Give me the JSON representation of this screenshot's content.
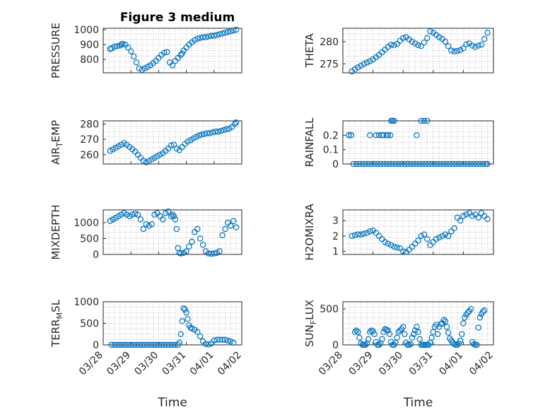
{
  "figure": {
    "title": "Figure 3 medium"
  },
  "chart_data": [
    {
      "type": "scatter",
      "ylabel": "PRESSURE",
      "xlabel": "",
      "ylim": [
        710,
        1010
      ],
      "yticks": [
        800,
        900,
        1000
      ],
      "xlim": [
        "2013-03-28",
        "2013-04-02"
      ],
      "xticks": [
        "03/28",
        "03/29",
        "03/30",
        "03/31",
        "04/01",
        "04/02"
      ],
      "title": "Figure 3 medium",
      "grid": true,
      "marker_color": "#0072bd",
      "x": [
        0.25,
        0.3,
        0.4,
        0.5,
        0.6,
        0.65,
        0.7,
        0.8,
        0.9,
        1.0,
        1.1,
        1.2,
        1.3,
        1.4,
        1.5,
        1.6,
        1.7,
        1.8,
        1.9,
        2.0,
        2.1,
        2.2,
        2.3,
        2.4,
        2.5,
        2.6,
        2.7,
        2.8,
        2.85,
        2.9,
        3.0,
        3.1,
        3.2,
        3.3,
        3.4,
        3.5,
        3.6,
        3.7,
        3.8,
        3.9,
        4.0,
        4.1,
        4.2,
        4.3,
        4.4,
        4.5,
        4.6,
        4.7,
        4.8
      ],
      "y": [
        870,
        875,
        885,
        890,
        893,
        900,
        905,
        900,
        880,
        855,
        820,
        780,
        740,
        730,
        740,
        750,
        760,
        775,
        790,
        810,
        830,
        845,
        850,
        780,
        760,
        790,
        810,
        830,
        840,
        860,
        880,
        900,
        915,
        930,
        940,
        945,
        950,
        950,
        955,
        960,
        960,
        965,
        970,
        975,
        980,
        985,
        990,
        995,
        1000
      ]
    },
    {
      "type": "scatter",
      "ylabel": "THETA",
      "xlabel": "",
      "ylim": [
        273,
        283
      ],
      "yticks": [
        275,
        280
      ],
      "xlim": [
        "2013-03-28",
        "2013-04-02"
      ],
      "xticks": [
        "03/28",
        "03/29",
        "03/30",
        "03/31",
        "04/01",
        "04/02"
      ],
      "grid": true,
      "x": [
        0.3,
        0.4,
        0.5,
        0.6,
        0.7,
        0.8,
        0.9,
        1.0,
        1.1,
        1.2,
        1.3,
        1.4,
        1.5,
        1.6,
        1.7,
        1.8,
        1.9,
        2.0,
        2.1,
        2.2,
        2.3,
        2.4,
        2.5,
        2.6,
        2.7,
        2.8,
        2.9,
        3.0,
        3.1,
        3.2,
        3.3,
        3.4,
        3.5,
        3.6,
        3.7,
        3.8,
        3.9,
        4.0,
        4.1,
        4.2,
        4.3,
        4.4,
        4.5,
        4.6,
        4.7,
        4.8
      ],
      "y": [
        273.3,
        273.8,
        274.2,
        274.6,
        275.0,
        275.3,
        275.6,
        276.0,
        276.5,
        277.0,
        277.6,
        278.2,
        278.8,
        279.3,
        279.2,
        279.5,
        280.2,
        280.8,
        281.0,
        280.5,
        280.0,
        279.6,
        279.2,
        279.0,
        279.8,
        280.8,
        282.3,
        282.0,
        281.5,
        281.0,
        280.6,
        280.0,
        279.0,
        278.0,
        277.8,
        277.9,
        278.1,
        278.5,
        279.4,
        279.6,
        279.1,
        278.8,
        279.1,
        279.3,
        280.6,
        282.0
      ]
    },
    {
      "type": "scatter",
      "ylabel": "AIR_TEMP",
      "xlabel": "",
      "ylim": [
        254,
        282
      ],
      "yticks": [
        260,
        270,
        280
      ],
      "xlim": [
        "2013-03-28",
        "2013-04-02"
      ],
      "xticks": [
        "03/28",
        "03/29",
        "03/30",
        "03/31",
        "04/01",
        "04/02"
      ],
      "grid": true,
      "x": [
        0.25,
        0.35,
        0.45,
        0.55,
        0.65,
        0.75,
        0.85,
        0.95,
        1.05,
        1.15,
        1.25,
        1.35,
        1.45,
        1.55,
        1.65,
        1.75,
        1.85,
        1.95,
        2.05,
        2.15,
        2.25,
        2.35,
        2.45,
        2.55,
        2.65,
        2.75,
        2.85,
        2.95,
        3.05,
        3.15,
        3.25,
        3.35,
        3.45,
        3.55,
        3.65,
        3.75,
        3.85,
        3.95,
        4.05,
        4.15,
        4.25,
        4.35,
        4.45,
        4.55,
        4.65,
        4.75,
        4.8
      ],
      "y": [
        262.5,
        263.5,
        264.5,
        265.5,
        266.5,
        267.5,
        266.5,
        265.0,
        263.5,
        262.0,
        260.0,
        258.0,
        256.0,
        255.0,
        256.0,
        257.0,
        258.0,
        259.0,
        260.0,
        261.0,
        262.5,
        264.0,
        266.0,
        266.5,
        264.0,
        263.0,
        265.0,
        267.0,
        268.5,
        269.5,
        270.5,
        271.5,
        272.5,
        273.0,
        273.5,
        274.0,
        274.0,
        274.5,
        275.0,
        275.0,
        275.5,
        276.0,
        276.5,
        277.0,
        278.0,
        280.0,
        281.0
      ]
    },
    {
      "type": "scatter",
      "ylabel": "RAINFALL",
      "xlabel": "",
      "ylim": [
        0,
        0.3
      ],
      "yticks": [
        0,
        0.1,
        0.2
      ],
      "xlim": [
        "2013-03-28",
        "2013-04-02"
      ],
      "xticks": [
        "03/28",
        "03/29",
        "03/30",
        "03/31",
        "04/01",
        "04/02"
      ],
      "grid": true,
      "x": [
        0.2,
        0.28,
        0.35,
        0.45,
        0.55,
        0.65,
        0.75,
        0.85,
        0.95,
        1.05,
        1.15,
        1.25,
        1.35,
        1.45,
        1.55,
        1.65,
        1.75,
        1.85,
        1.95,
        2.05,
        2.15,
        2.25,
        2.35,
        2.45,
        2.55,
        2.65,
        2.75,
        2.85,
        2.95,
        3.05,
        3.15,
        3.25,
        3.35,
        3.45,
        3.55,
        3.65,
        3.75,
        3.85,
        3.95,
        4.05,
        4.15,
        4.25,
        4.35,
        4.45,
        4.55,
        4.65,
        4.75,
        4.8,
        0.2,
        0.28,
        0.9,
        1.1,
        1.2,
        1.3,
        1.35,
        1.45,
        1.5,
        1.58,
        1.65,
        1.6,
        1.7,
        2.45,
        2.6,
        2.7,
        2.8
      ],
      "y": [
        0.2,
        0.2,
        0,
        0,
        0,
        0,
        0,
        0,
        0,
        0,
        0,
        0,
        0,
        0,
        0,
        0,
        0,
        0,
        0,
        0,
        0,
        0,
        0,
        0,
        0,
        0,
        0,
        0,
        0,
        0,
        0,
        0,
        0,
        0,
        0,
        0,
        0,
        0,
        0,
        0,
        0,
        0,
        0,
        0,
        0,
        0,
        0,
        0,
        0.2,
        0.2,
        0.2,
        0.2,
        0.2,
        0.2,
        0.2,
        0.2,
        0.2,
        0.2,
        0.3,
        0.3,
        0.3,
        0.2,
        0.3,
        0.3,
        0.3
      ]
    },
    {
      "type": "scatter",
      "ylabel": "MIXDEPTH",
      "xlabel": "",
      "ylim": [
        0,
        1400
      ],
      "yticks": [
        0,
        500,
        1000
      ],
      "xlim": [
        "2013-03-28",
        "2013-04-02"
      ],
      "xticks": [
        "03/28",
        "03/29",
        "03/30",
        "03/31",
        "04/01",
        "04/02"
      ],
      "grid": true,
      "x": [
        0.25,
        0.35,
        0.45,
        0.55,
        0.65,
        0.75,
        0.85,
        0.95,
        1.05,
        1.15,
        1.25,
        1.35,
        1.45,
        1.55,
        1.65,
        1.75,
        1.85,
        1.95,
        2.05,
        2.15,
        2.25,
        2.35,
        2.45,
        2.5,
        2.55,
        2.6,
        2.65,
        2.7,
        2.75,
        2.8,
        2.9,
        3.0,
        3.1,
        3.2,
        3.3,
        3.4,
        3.5,
        3.6,
        3.7,
        3.8,
        3.9,
        4.0,
        4.1,
        4.2,
        4.3,
        4.4,
        4.5,
        4.6,
        4.7,
        4.8
      ],
      "y": [
        1050,
        1100,
        1150,
        1200,
        1250,
        1300,
        1250,
        1200,
        1250,
        1280,
        1250,
        1100,
        800,
        950,
        900,
        950,
        1250,
        1300,
        1200,
        1100,
        1300,
        1350,
        1200,
        1250,
        1200,
        1100,
        800,
        200,
        50,
        30,
        50,
        100,
        250,
        400,
        700,
        800,
        500,
        300,
        100,
        30,
        20,
        30,
        50,
        100,
        600,
        800,
        1000,
        900,
        1050,
        850
      ]
    },
    {
      "type": "scatter",
      "ylabel": "H2OMIXRA",
      "xlabel": "",
      "ylim": [
        0.8,
        3.7
      ],
      "yticks": [
        1,
        2,
        3
      ],
      "xlim": [
        "2013-03-28",
        "2013-04-02"
      ],
      "xticks": [
        "03/28",
        "03/29",
        "03/30",
        "03/31",
        "04/01",
        "04/02"
      ],
      "grid": true,
      "x": [
        0.3,
        0.4,
        0.5,
        0.6,
        0.7,
        0.8,
        0.9,
        1.0,
        1.1,
        1.2,
        1.3,
        1.4,
        1.5,
        1.6,
        1.7,
        1.8,
        1.9,
        2.0,
        2.1,
        2.2,
        2.3,
        2.4,
        2.5,
        2.6,
        2.7,
        2.8,
        2.9,
        3.0,
        3.1,
        3.2,
        3.3,
        3.4,
        3.5,
        3.6,
        3.7,
        3.8,
        3.9,
        4.0,
        4.1,
        4.2,
        4.3,
        4.4,
        4.5,
        4.6,
        4.7,
        4.8
      ],
      "y": [
        2.0,
        2.05,
        2.1,
        2.1,
        2.15,
        2.2,
        2.3,
        2.35,
        2.2,
        2.0,
        1.8,
        1.6,
        1.5,
        1.4,
        1.3,
        1.25,
        1.2,
        1.0,
        0.95,
        1.1,
        1.3,
        1.5,
        1.7,
        2.0,
        2.1,
        1.8,
        1.4,
        1.6,
        1.8,
        1.9,
        2.0,
        2.1,
        2.0,
        2.3,
        2.5,
        3.2,
        3.0,
        3.3,
        3.4,
        3.5,
        3.3,
        3.4,
        3.2,
        3.5,
        3.3,
        3.1
      ]
    },
    {
      "type": "scatter",
      "ylabel": "TERR_MSL",
      "xlabel": "Time",
      "ylim": [
        0,
        1000
      ],
      "yticks": [
        0,
        500,
        1000
      ],
      "xlim": [
        "2013-03-28",
        "2013-04-02"
      ],
      "xticks": [
        "03/28",
        "03/29",
        "03/30",
        "03/31",
        "04/01",
        "04/02"
      ],
      "grid": true,
      "x": [
        0.3,
        0.4,
        0.5,
        0.6,
        0.7,
        0.8,
        0.9,
        1.0,
        1.1,
        1.2,
        1.3,
        1.4,
        1.5,
        1.6,
        1.7,
        1.8,
        1.9,
        2.0,
        2.1,
        2.2,
        2.3,
        2.4,
        2.5,
        2.6,
        2.7,
        2.75,
        2.8,
        2.85,
        2.9,
        2.95,
        3.0,
        3.05,
        3.1,
        3.15,
        3.2,
        3.3,
        3.4,
        3.5,
        3.6,
        3.7,
        3.8,
        3.9,
        4.0,
        4.1,
        4.2,
        4.3,
        4.4,
        4.5,
        4.6,
        4.7
      ],
      "y": [
        0,
        0,
        0,
        0,
        0,
        0,
        0,
        0,
        0,
        0,
        0,
        0,
        0,
        0,
        0,
        0,
        0,
        0,
        0,
        0,
        0,
        0,
        0,
        0,
        0,
        50,
        250,
        550,
        850,
        820,
        750,
        600,
        450,
        400,
        380,
        350,
        300,
        200,
        80,
        20,
        10,
        30,
        100,
        120,
        120,
        120,
        120,
        100,
        80,
        50
      ]
    },
    {
      "type": "scatter",
      "ylabel": "SUN_FLUX",
      "xlabel": "Time",
      "ylim": [
        0,
        600
      ],
      "yticks": [
        0,
        500
      ],
      "xlim": [
        "2013-03-28",
        "2013-04-02"
      ],
      "xticks": [
        "03/28",
        "03/29",
        "03/30",
        "03/31",
        "04/01",
        "04/02"
      ],
      "grid": true,
      "x": [
        0.4,
        0.45,
        0.5,
        0.55,
        0.6,
        0.65,
        0.7,
        0.75,
        0.8,
        0.85,
        0.9,
        0.95,
        1.0,
        1.05,
        1.1,
        1.15,
        1.2,
        1.25,
        1.3,
        1.35,
        1.4,
        1.45,
        1.5,
        1.55,
        1.6,
        1.65,
        1.7,
        1.75,
        1.8,
        1.85,
        1.9,
        1.95,
        2.0,
        2.05,
        2.1,
        2.15,
        2.2,
        2.25,
        2.3,
        2.35,
        2.4,
        2.45,
        2.5,
        2.55,
        2.6,
        2.65,
        2.7,
        2.75,
        2.8,
        2.85,
        2.9,
        2.95,
        3.0,
        3.05,
        3.1,
        3.15,
        3.2,
        3.25,
        3.3,
        3.35,
        3.4,
        3.45,
        3.5,
        3.55,
        3.6,
        3.65,
        3.7,
        3.75,
        3.8,
        3.85,
        3.9,
        3.95,
        4.0,
        4.05,
        4.1,
        4.15,
        4.2,
        4.25,
        4.3,
        4.35,
        4.4,
        4.45,
        4.5,
        4.55,
        4.6,
        4.65,
        4.7
      ],
      "y": [
        180,
        200,
        180,
        100,
        20,
        0,
        0,
        0,
        20,
        80,
        180,
        200,
        190,
        150,
        40,
        0,
        0,
        20,
        80,
        180,
        220,
        210,
        200,
        150,
        40,
        0,
        0,
        30,
        100,
        180,
        200,
        220,
        250,
        150,
        30,
        0,
        0,
        10,
        100,
        150,
        200,
        250,
        180,
        80,
        0,
        0,
        0,
        0,
        0,
        0,
        30,
        100,
        180,
        250,
        280,
        150,
        250,
        290,
        300,
        350,
        330,
        250,
        170,
        90,
        60,
        30,
        10,
        0,
        0,
        20,
        60,
        150,
        300,
        380,
        420,
        450,
        470,
        500,
        40,
        10,
        0,
        0,
        240,
        380,
        430,
        460,
        480
      ]
    }
  ]
}
